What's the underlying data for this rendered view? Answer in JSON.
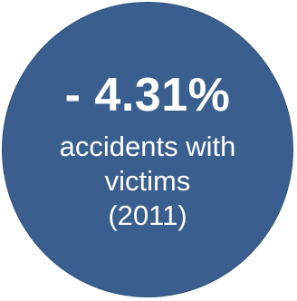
{
  "badge": {
    "value": "- 4.31%",
    "caption_line1": "accidents with",
    "caption_line2": "victims",
    "caption_line3": "(2011)",
    "background_color": "#3a5f8f",
    "text_color": "#ffffff"
  }
}
